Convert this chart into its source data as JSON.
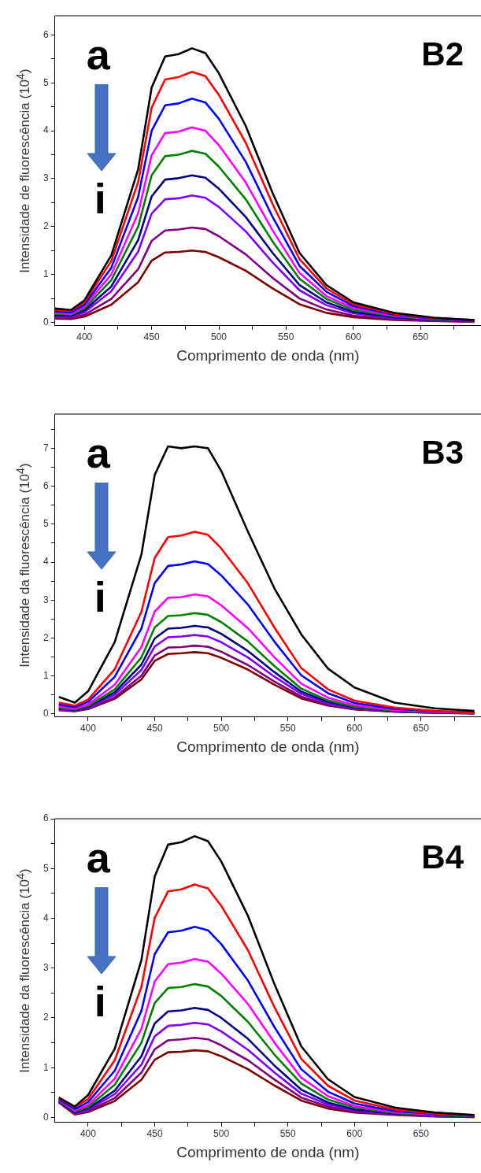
{
  "chart_data": [
    {
      "type": "line",
      "title": "B2",
      "xlabel": "Comprimento de onda (nm)",
      "ylabel": "Intensidade de fluorescência (10$^{4}$)",
      "annotations": [
        "a",
        "i"
      ],
      "grid": false,
      "legend": false,
      "marker": "none",
      "line_style": "solid",
      "xlim": [
        378,
        695
      ],
      "xticks": [
        400,
        {
          "value": 425,
          "label": null
        },
        450,
        {
          "value": 475,
          "label": null
        },
        500,
        {
          "value": 525,
          "label": null
        },
        550,
        {
          "value": 575,
          "label": null
        },
        600,
        {
          "value": 625,
          "label": null
        },
        650,
        {
          "value": 675,
          "label": null
        }
      ],
      "ylim": [
        -0.07,
        6.4
      ],
      "yticks": [
        0,
        {
          "value": 0.5,
          "label": null
        },
        1,
        {
          "value": 1.5,
          "label": null
        },
        2,
        {
          "value": 2.5,
          "label": null
        },
        3,
        {
          "value": 3.5,
          "label": null
        },
        4,
        {
          "value": 4.5,
          "label": null
        },
        5,
        {
          "value": 5.5,
          "label": null
        },
        6
      ],
      "x": [
        378,
        390,
        400,
        420,
        440,
        450,
        460,
        470,
        480,
        490,
        500,
        520,
        540,
        560,
        580,
        600,
        630,
        660,
        690
      ],
      "series": [
        {
          "color": "#000000",
          "values": [
            0.29,
            0.26,
            0.46,
            1.4,
            3.2,
            4.9,
            5.55,
            5.6,
            5.72,
            5.62,
            5.2,
            4.1,
            2.7,
            1.45,
            0.78,
            0.42,
            0.2,
            0.1,
            0.05
          ]
        },
        {
          "color": "#ff0000",
          "values": [
            0.26,
            0.24,
            0.42,
            1.28,
            2.93,
            4.48,
            5.07,
            5.12,
            5.23,
            5.14,
            4.75,
            3.75,
            2.47,
            1.32,
            0.71,
            0.38,
            0.18,
            0.09,
            0.05
          ]
        },
        {
          "color": "#0000ff",
          "values": [
            0.23,
            0.21,
            0.37,
            1.14,
            2.62,
            4.0,
            4.53,
            4.57,
            4.67,
            4.59,
            4.25,
            3.35,
            2.2,
            1.18,
            0.64,
            0.34,
            0.16,
            0.08,
            0.04
          ]
        },
        {
          "color": "#ff00ff",
          "values": [
            0.2,
            0.18,
            0.33,
            1.0,
            2.28,
            3.49,
            3.95,
            3.98,
            4.07,
            4.0,
            3.7,
            2.92,
            1.92,
            1.03,
            0.55,
            0.3,
            0.14,
            0.07,
            0.04
          ]
        },
        {
          "color": "#008000",
          "values": [
            0.18,
            0.16,
            0.29,
            0.88,
            2.0,
            3.07,
            3.47,
            3.5,
            3.58,
            3.52,
            3.25,
            2.57,
            1.69,
            0.91,
            0.49,
            0.26,
            0.13,
            0.06,
            0.03
          ]
        },
        {
          "color": "#000080",
          "values": [
            0.15,
            0.14,
            0.25,
            0.75,
            1.72,
            2.63,
            2.98,
            3.01,
            3.07,
            3.02,
            2.79,
            2.2,
            1.45,
            0.78,
            0.42,
            0.22,
            0.11,
            0.05,
            0.03
          ]
        },
        {
          "color": "#8000ff",
          "values": [
            0.13,
            0.12,
            0.21,
            0.65,
            1.48,
            2.27,
            2.57,
            2.59,
            2.65,
            2.6,
            2.41,
            1.9,
            1.25,
            0.67,
            0.36,
            0.19,
            0.09,
            0.05,
            0.02
          ]
        },
        {
          "color": "#800080",
          "values": [
            0.1,
            0.09,
            0.16,
            0.49,
            1.11,
            1.7,
            1.92,
            1.94,
            1.98,
            1.95,
            1.8,
            1.42,
            0.93,
            0.5,
            0.27,
            0.14,
            0.07,
            0.03,
            0.02
          ]
        },
        {
          "color": "#800000",
          "values": [
            0.08,
            0.07,
            0.12,
            0.37,
            0.84,
            1.29,
            1.46,
            1.47,
            1.5,
            1.47,
            1.36,
            1.08,
            0.71,
            0.38,
            0.2,
            0.11,
            0.05,
            0.03,
            0.01
          ]
        }
      ]
    },
    {
      "type": "line",
      "title": "B3",
      "xlabel": "Comprimento de onda (nm)",
      "ylabel": "Intensidade da fluorescência (10$^{4}$)",
      "annotations": [
        "a",
        "i"
      ],
      "grid": false,
      "legend": false,
      "marker": "none",
      "line_style": "solid",
      "xlim": [
        375,
        695
      ],
      "xticks": [
        400,
        {
          "value": 425,
          "label": null
        },
        450,
        {
          "value": 475,
          "label": null
        },
        500,
        {
          "value": 525,
          "label": null
        },
        550,
        {
          "value": 575,
          "label": null
        },
        600,
        {
          "value": 625,
          "label": null
        },
        650,
        {
          "value": 675,
          "label": null
        }
      ],
      "ylim": [
        -0.08,
        7.9
      ],
      "yticks": [
        0,
        {
          "value": 0.5,
          "label": null
        },
        1,
        {
          "value": 1.5,
          "label": null
        },
        2,
        {
          "value": 2.5,
          "label": null
        },
        3,
        {
          "value": 3.5,
          "label": null
        },
        4,
        {
          "value": 4.5,
          "label": null
        },
        5,
        {
          "value": 5.5,
          "label": null
        },
        6,
        {
          "value": 6.5,
          "label": null
        },
        7,
        {
          "value": 7.5,
          "label": null
        }
      ],
      "x": [
        378,
        390,
        400,
        420,
        440,
        450,
        460,
        470,
        480,
        490,
        500,
        520,
        540,
        560,
        580,
        600,
        630,
        660,
        690
      ],
      "series": [
        {
          "color": "#000000",
          "values": [
            0.45,
            0.3,
            0.6,
            1.9,
            4.2,
            6.3,
            7.05,
            7.0,
            7.05,
            7.0,
            6.4,
            4.8,
            3.3,
            2.1,
            1.2,
            0.7,
            0.3,
            0.15,
            0.08
          ]
        },
        {
          "color": "#ff0000",
          "values": [
            0.3,
            0.22,
            0.38,
            1.18,
            2.69,
            4.11,
            4.66,
            4.7,
            4.8,
            4.72,
            4.36,
            3.44,
            2.27,
            1.21,
            0.65,
            0.35,
            0.17,
            0.08,
            0.04
          ]
        },
        {
          "color": "#0000ff",
          "values": [
            0.25,
            0.18,
            0.32,
            0.98,
            2.25,
            3.45,
            3.9,
            3.94,
            4.02,
            3.95,
            3.65,
            2.88,
            1.9,
            1.02,
            0.55,
            0.29,
            0.14,
            0.07,
            0.04
          ]
        },
        {
          "color": "#ff00ff",
          "values": [
            0.2,
            0.14,
            0.25,
            0.77,
            1.76,
            2.7,
            3.06,
            3.08,
            3.15,
            3.1,
            2.86,
            2.26,
            1.49,
            0.8,
            0.43,
            0.23,
            0.11,
            0.05,
            0.03
          ]
        },
        {
          "color": "#008000",
          "values": [
            0.17,
            0.12,
            0.21,
            0.65,
            1.49,
            2.28,
            2.58,
            2.6,
            2.66,
            2.61,
            2.42,
            1.91,
            1.26,
            0.67,
            0.36,
            0.19,
            0.09,
            0.05,
            0.02
          ]
        },
        {
          "color": "#000080",
          "values": [
            0.15,
            0.1,
            0.19,
            0.57,
            1.3,
            1.99,
            2.25,
            2.27,
            2.32,
            2.28,
            2.11,
            1.66,
            1.1,
            0.59,
            0.32,
            0.17,
            0.08,
            0.04,
            0.02
          ]
        },
        {
          "color": "#8000ff",
          "values": [
            0.14,
            0.09,
            0.17,
            0.51,
            1.16,
            1.78,
            2.02,
            2.04,
            2.08,
            2.04,
            1.89,
            1.49,
            0.98,
            0.53,
            0.28,
            0.15,
            0.07,
            0.04,
            0.02
          ]
        },
        {
          "color": "#800080",
          "values": [
            0.12,
            0.08,
            0.14,
            0.44,
            1.01,
            1.54,
            1.75,
            1.76,
            1.8,
            1.77,
            1.64,
            1.29,
            0.85,
            0.46,
            0.24,
            0.13,
            0.06,
            0.03,
            0.02
          ]
        },
        {
          "color": "#800000",
          "values": [
            0.1,
            0.07,
            0.13,
            0.4,
            0.91,
            1.4,
            1.58,
            1.6,
            1.63,
            1.6,
            1.48,
            1.17,
            0.77,
            0.41,
            0.22,
            0.12,
            0.06,
            0.03,
            0.01
          ]
        }
      ]
    },
    {
      "type": "line",
      "title": "B4",
      "xlabel": "Comprimento de onda (nm)",
      "ylabel": "Intensidade da fluorescência (10$^{4}$)",
      "annotations": [
        "a",
        "i"
      ],
      "grid": false,
      "legend": false,
      "marker": "none",
      "line_style": "solid",
      "xlim": [
        375,
        695
      ],
      "xticks": [
        400,
        {
          "value": 425,
          "label": null
        },
        450,
        {
          "value": 475,
          "label": null
        },
        500,
        {
          "value": 525,
          "label": null
        },
        550,
        {
          "value": 575,
          "label": null
        },
        600,
        {
          "value": 625,
          "label": null
        },
        650,
        {
          "value": 675,
          "label": null
        }
      ],
      "ylim": [
        -0.1,
        6
      ],
      "yticks": [
        0,
        {
          "value": 0.5,
          "label": null
        },
        1,
        {
          "value": 1.5,
          "label": null
        },
        2,
        {
          "value": 2.5,
          "label": null
        },
        3,
        {
          "value": 3.5,
          "label": null
        },
        4,
        {
          "value": 4.5,
          "label": null
        },
        5,
        {
          "value": 5.5,
          "label": null
        },
        6
      ],
      "x": [
        378,
        390,
        400,
        420,
        440,
        450,
        460,
        470,
        480,
        490,
        500,
        520,
        540,
        560,
        580,
        600,
        630,
        660,
        690
      ],
      "series": [
        {
          "color": "#000000",
          "values": [
            0.4,
            0.22,
            0.45,
            1.38,
            3.16,
            4.84,
            5.48,
            5.53,
            5.65,
            5.55,
            5.14,
            4.05,
            2.67,
            1.43,
            0.77,
            0.41,
            0.2,
            0.1,
            0.05
          ]
        },
        {
          "color": "#ff0000",
          "values": [
            0.38,
            0.21,
            0.37,
            1.15,
            2.62,
            4.01,
            4.54,
            4.58,
            4.68,
            4.6,
            4.25,
            3.36,
            2.21,
            1.18,
            0.64,
            0.34,
            0.16,
            0.08,
            0.04
          ]
        },
        {
          "color": "#0000ff",
          "values": [
            0.36,
            0.17,
            0.31,
            0.94,
            2.14,
            3.28,
            3.72,
            3.75,
            3.83,
            3.76,
            3.48,
            2.75,
            1.81,
            0.97,
            0.52,
            0.28,
            0.13,
            0.07,
            0.03
          ]
        },
        {
          "color": "#ff00ff",
          "values": [
            0.35,
            0.14,
            0.25,
            0.78,
            1.78,
            2.73,
            3.08,
            3.11,
            3.18,
            3.13,
            2.89,
            2.28,
            1.5,
            0.8,
            0.43,
            0.23,
            0.11,
            0.05,
            null
          ]
        },
        {
          "color": "#008000",
          "values": [
            0.34,
            0.12,
            0.21,
            0.66,
            1.5,
            2.3,
            2.6,
            2.62,
            2.68,
            2.63,
            2.44,
            1.92,
            1.26,
            0.68,
            0.36,
            0.2,
            0.09,
            0.05,
            0.02
          ]
        },
        {
          "color": "#000080",
          "values": [
            0.33,
            0.1,
            0.18,
            0.54,
            1.23,
            1.89,
            2.13,
            2.15,
            2.2,
            2.16,
            2.0,
            1.58,
            1.04,
            0.56,
            0.3,
            0.16,
            0.08,
            0.04,
            0.02
          ]
        },
        {
          "color": "#8000ff",
          "values": [
            0.32,
            0.09,
            0.15,
            0.47,
            1.06,
            1.63,
            1.84,
            1.86,
            1.9,
            1.87,
            1.73,
            1.36,
            0.9,
            0.48,
            0.26,
            0.14,
            0.07,
            0.03,
            0.02
          ]
        },
        {
          "color": "#800080",
          "values": [
            0.31,
            0.07,
            0.13,
            0.39,
            0.9,
            1.37,
            1.55,
            1.57,
            1.6,
            1.57,
            1.45,
            1.15,
            0.76,
            0.4,
            0.22,
            0.12,
            0.06,
            0.03,
            0.01
          ]
        },
        {
          "color": "#800000",
          "values": [
            0.3,
            0.06,
            0.11,
            0.33,
            0.76,
            1.16,
            1.31,
            1.32,
            1.35,
            1.33,
            1.23,
            0.97,
            0.64,
            0.34,
            0.18,
            0.1,
            0.05,
            0.02,
            0.01
          ]
        }
      ]
    }
  ]
}
